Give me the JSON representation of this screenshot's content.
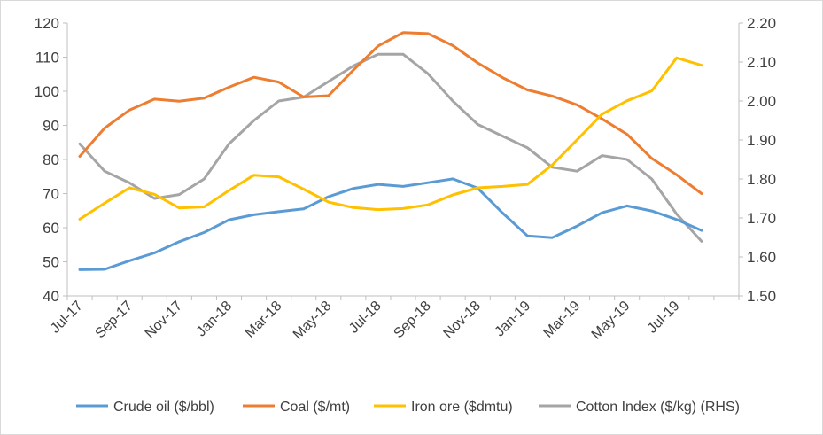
{
  "chart_data": {
    "type": "line",
    "x": [
      "Jul-17",
      "Aug-17",
      "Sep-17",
      "Oct-17",
      "Nov-17",
      "Dec-17",
      "Jan-18",
      "Feb-18",
      "Mar-18",
      "Apr-18",
      "May-18",
      "Jun-18",
      "Jul-18",
      "Aug-18",
      "Sep-18",
      "Oct-18",
      "Nov-18",
      "Dec-18",
      "Jan-19",
      "Feb-19",
      "Mar-19",
      "Apr-19",
      "May-19",
      "Jun-19",
      "Jul-19",
      "Aug-19",
      "Sep-19"
    ],
    "xtick_labels": [
      "Jul-17",
      "Sep-17",
      "Nov-17",
      "Jan-18",
      "Mar-18",
      "May-18",
      "Jul-18",
      "Sep-18",
      "Nov-18",
      "Jan-19",
      "Mar-19",
      "May-19",
      "Jul-19"
    ],
    "series": [
      {
        "name": "Crude oil ($/bbl)",
        "axis": "left",
        "color": "#5b9bd5",
        "values": [
          47.7,
          47.8,
          50.3,
          52.6,
          55.9,
          58.6,
          62.3,
          63.8,
          64.7,
          65.5,
          69.1,
          71.5,
          72.7,
          72.1,
          73.2,
          74.3,
          71.6,
          64.3,
          57.6,
          57.1,
          60.5,
          64.4,
          66.4,
          64.9,
          62.4,
          59.2,
          null
        ]
      },
      {
        "name": "Coal ($/mt)",
        "axis": "left",
        "color": "#ed7d31",
        "values": [
          80.9,
          89.2,
          94.5,
          97.7,
          97.1,
          98.0,
          101.2,
          104.1,
          102.7,
          98.3,
          98.7,
          106.2,
          113.3,
          117.2,
          116.9,
          113.4,
          108.3,
          104.0,
          100.4,
          98.6,
          96.0,
          91.9,
          87.4,
          80.3,
          75.5,
          70.0,
          null
        ]
      },
      {
        "name": "Iron ore ($dmtu)",
        "axis": "left",
        "color": "#ffc000",
        "values": [
          62.5,
          67.2,
          71.7,
          69.8,
          65.8,
          66.1,
          70.9,
          75.4,
          74.9,
          71.3,
          67.5,
          65.9,
          65.3,
          65.6,
          66.7,
          69.6,
          71.7,
          72.1,
          72.7,
          78.4,
          85.8,
          93.3,
          97.2,
          100.1,
          109.8,
          107.6,
          null
        ]
      },
      {
        "name": "Cotton Index ($/kg) (RHS)",
        "axis": "right",
        "color": "#a5a5a5",
        "values": [
          1.89,
          1.82,
          1.79,
          1.75,
          1.76,
          1.8,
          1.89,
          1.95,
          2.0,
          2.01,
          2.05,
          2.09,
          2.12,
          2.12,
          2.07,
          2.0,
          1.94,
          1.91,
          1.88,
          1.83,
          1.82,
          1.86,
          1.85,
          1.8,
          1.71,
          1.64,
          null
        ]
      }
    ],
    "left_axis": {
      "ticks": [
        "40",
        "50",
        "60",
        "70",
        "80",
        "90",
        "100",
        "110",
        "120"
      ],
      "ylim": [
        40,
        120
      ]
    },
    "right_axis": {
      "ticks": [
        "1.50",
        "1.60",
        "1.70",
        "1.80",
        "1.90",
        "2.00",
        "2.10",
        "2.20"
      ],
      "ylim": [
        1.5,
        2.2
      ]
    },
    "title": "",
    "grid": false,
    "legend": "bottom"
  },
  "colors": {
    "axis": "#bfbfbf",
    "text": "#404040"
  }
}
